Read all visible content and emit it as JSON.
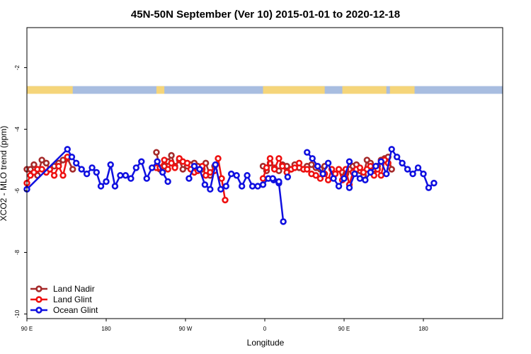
{
  "chart_data": {
    "type": "line",
    "title": "45N-50N September (Ver 10)   2015-01-01 to 2020-12-18",
    "xlabel": "Longitude",
    "ylabel": "XCO2 - MLO trend (ppm)",
    "xlim": [
      0,
      540
    ],
    "ylim": [
      -10.15,
      -0.7
    ],
    "x_ticks": [
      {
        "value": 0,
        "label": "90 E"
      },
      {
        "value": 90,
        "label": "180"
      },
      {
        "value": 180,
        "label": "90 W"
      },
      {
        "value": 270,
        "label": "0"
      },
      {
        "value": 360,
        "label": "90 E"
      },
      {
        "value": 450,
        "label": "180"
      }
    ],
    "y_ticks": [
      {
        "value": -2,
        "label": "-2"
      },
      {
        "value": -4,
        "label": "-4"
      },
      {
        "value": -6,
        "label": "-6"
      },
      {
        "value": -8,
        "label": "-8"
      },
      {
        "value": -10,
        "label": "-10"
      }
    ],
    "land_mask_band": {
      "y_top": -2.6,
      "y_bottom": -2.85,
      "land_color": "#f5d57a",
      "ocean_color": "#a8bde0",
      "land_ranges": [
        [
          0,
          52
        ],
        [
          147,
          156
        ],
        [
          268,
          338
        ],
        [
          358,
          408
        ],
        [
          412,
          440
        ]
      ]
    },
    "legend_position": "bottom-left",
    "series": [
      {
        "name": "Land Nadir",
        "color": "#a52a2a",
        "segments": [
          [
            [
              0,
              -5.3
            ],
            [
              4,
              -5.3
            ],
            [
              8,
              -5.15
            ],
            [
              12,
              -5.5
            ],
            [
              17,
              -5.0
            ],
            [
              22,
              -5.1
            ],
            [
              26,
              -5.3
            ],
            [
              31,
              -5.2
            ],
            [
              36,
              -5.1
            ],
            [
              41,
              -5.0
            ],
            [
              46,
              -4.95
            ],
            [
              52,
              -5.3
            ]
          ],
          [
            [
              147,
              -4.75
            ],
            [
              151,
              -5.3
            ],
            [
              156,
              -5.2
            ],
            [
              160,
              -5.05
            ],
            [
              164,
              -4.85
            ],
            [
              168,
              -5.2
            ],
            [
              173,
              -5.0
            ],
            [
              177,
              -5.3
            ],
            [
              182,
              -5.2
            ],
            [
              186,
              -5.15
            ],
            [
              190,
              -5.1
            ],
            [
              194,
              -5.2
            ],
            [
              199,
              -5.3
            ],
            [
              203,
              -5.1
            ],
            [
              208,
              -5.5
            ],
            [
              213,
              -5.2
            ]
          ],
          [
            [
              268,
              -5.2
            ],
            [
              272,
              -5.35
            ],
            [
              276,
              -5.1
            ],
            [
              281,
              -5.25
            ],
            [
              286,
              -5.35
            ],
            [
              290,
              -5.15
            ],
            [
              295,
              -5.2
            ],
            [
              300,
              -5.3
            ],
            [
              304,
              -5.15
            ],
            [
              309,
              -5.25
            ],
            [
              314,
              -5.3
            ],
            [
              318,
              -5.2
            ],
            [
              323,
              -5.15
            ],
            [
              328,
              -5.25
            ],
            [
              333,
              -5.3
            ],
            [
              338,
              -5.2
            ]
          ],
          [
            [
              358,
              -5.4
            ],
            [
              362,
              -5.45
            ],
            [
              366,
              -5.3
            ],
            [
              370,
              -5.2
            ],
            [
              374,
              -5.15
            ],
            [
              378,
              -5.35
            ],
            [
              382,
              -5.5
            ],
            [
              386,
              -5.0
            ],
            [
              390,
              -5.1
            ],
            [
              394,
              -5.3
            ],
            [
              398,
              -5.2
            ],
            [
              402,
              -5.0
            ],
            [
              406,
              -4.95
            ],
            [
              410,
              -4.9
            ],
            [
              414,
              -5.3
            ]
          ]
        ]
      },
      {
        "name": "Land Glint",
        "color": "#ee1111",
        "segments": [
          [
            [
              0,
              -5.75
            ],
            [
              4,
              -5.5
            ],
            [
              8,
              -5.4
            ],
            [
              12,
              -5.3
            ],
            [
              17,
              -5.3
            ],
            [
              22,
              -5.4
            ],
            [
              26,
              -5.3
            ],
            [
              31,
              -5.5
            ],
            [
              36,
              -5.2
            ],
            [
              41,
              -5.5
            ],
            [
              46,
              -4.9
            ]
          ],
          [
            [
              147,
              -5.25
            ],
            [
              151,
              -5.25
            ],
            [
              156,
              -5.0
            ],
            [
              160,
              -5.3
            ],
            [
              164,
              -5.1
            ],
            [
              168,
              -5.25
            ],
            [
              173,
              -4.95
            ],
            [
              177,
              -5.05
            ],
            [
              182,
              -5.1
            ],
            [
              186,
              -5.3
            ],
            [
              190,
              -5.4
            ],
            [
              194,
              -5.35
            ],
            [
              199,
              -5.2
            ],
            [
              203,
              -5.5
            ],
            [
              208,
              -5.4
            ],
            [
              213,
              -5.35
            ],
            [
              217,
              -4.95
            ],
            [
              221,
              -5.6
            ],
            [
              225,
              -6.3
            ]
          ],
          [
            [
              268,
              -5.6
            ],
            [
              272,
              -5.25
            ],
            [
              276,
              -4.95
            ],
            [
              281,
              -5.3
            ],
            [
              286,
              -4.95
            ],
            [
              290,
              -5.2
            ],
            [
              295,
              -5.4
            ],
            [
              300,
              -5.3
            ],
            [
              304,
              -5.25
            ],
            [
              309,
              -5.1
            ],
            [
              314,
              -5.3
            ],
            [
              318,
              -5.3
            ],
            [
              323,
              -5.45
            ],
            [
              328,
              -5.5
            ],
            [
              333,
              -5.6
            ],
            [
              338,
              -5.45
            ],
            [
              342,
              -5.65
            ],
            [
              346,
              -5.3
            ],
            [
              350,
              -5.45
            ],
            [
              354,
              -5.3
            ],
            [
              358,
              -5.65
            ],
            [
              362,
              -5.3
            ],
            [
              366,
              -5.8
            ],
            [
              370,
              -5.4
            ],
            [
              374,
              -5.3
            ],
            [
              378,
              -5.25
            ],
            [
              382,
              -5.4
            ],
            [
              386,
              -5.3
            ],
            [
              390,
              -5.2
            ],
            [
              394,
              -5.5
            ],
            [
              398,
              -5.3
            ],
            [
              402,
              -5.5
            ],
            [
              406,
              -5.0
            ],
            [
              410,
              -5.1
            ]
          ]
        ]
      },
      {
        "name": "Ocean Glint",
        "color": "#1010e0",
        "segments": [
          [
            [
              0,
              -5.95
            ],
            [
              46,
              -4.65
            ],
            [
              51,
              -4.9
            ],
            [
              56,
              -5.1
            ],
            [
              62,
              -5.3
            ],
            [
              68,
              -5.45
            ],
            [
              74,
              -5.25
            ],
            [
              79,
              -5.4
            ],
            [
              84,
              -5.85
            ],
            [
              90,
              -5.7
            ],
            [
              95,
              -5.15
            ],
            [
              100,
              -5.85
            ],
            [
              106,
              -5.5
            ],
            [
              112,
              -5.5
            ],
            [
              118,
              -5.6
            ],
            [
              124,
              -5.25
            ],
            [
              130,
              -5.05
            ],
            [
              136,
              -5.6
            ],
            [
              142,
              -5.25
            ],
            [
              148,
              -5.05
            ],
            [
              154,
              -5.4
            ],
            [
              160,
              -5.7
            ]
          ],
          [
            [
              184,
              -5.6
            ],
            [
              190,
              -5.2
            ],
            [
              196,
              -5.3
            ],
            [
              202,
              -5.8
            ],
            [
              208,
              -5.95
            ],
            [
              214,
              -5.15
            ],
            [
              220,
              -5.95
            ],
            [
              226,
              -5.85
            ],
            [
              232,
              -5.45
            ],
            [
              238,
              -5.5
            ],
            [
              244,
              -5.85
            ],
            [
              250,
              -5.5
            ],
            [
              256,
              -5.85
            ],
            [
              262,
              -5.85
            ],
            [
              268,
              -5.8
            ],
            [
              274,
              -5.6
            ],
            [
              280,
              -5.65
            ],
            [
              286,
              -5.75
            ],
            [
              291,
              -7.0
            ]
          ],
          [
            [
              279,
              -5.6
            ],
            [
              286,
              -5.7
            ]
          ],
          [
            [
              296,
              -5.55
            ]
          ],
          [
            [
              318,
              -4.75
            ],
            [
              324,
              -4.95
            ],
            [
              330,
              -5.2
            ],
            [
              336,
              -5.45
            ],
            [
              342,
              -5.1
            ],
            [
              348,
              -5.6
            ],
            [
              354,
              -5.85
            ],
            [
              360,
              -5.6
            ],
            [
              366,
              -5.05
            ]
          ],
          [
            [
              366,
              -5.9
            ],
            [
              372,
              -5.45
            ],
            [
              378,
              -5.6
            ],
            [
              384,
              -5.65
            ],
            [
              390,
              -5.4
            ],
            [
              396,
              -5.2
            ],
            [
              402,
              -5.05
            ],
            [
              408,
              -5.45
            ],
            [
              414,
              -4.65
            ],
            [
              420,
              -4.9
            ],
            [
              426,
              -5.1
            ],
            [
              432,
              -5.3
            ],
            [
              438,
              -5.45
            ],
            [
              444,
              -5.25
            ],
            [
              450,
              -5.45
            ],
            [
              456,
              -5.9
            ],
            [
              462,
              -5.75
            ]
          ]
        ]
      }
    ]
  }
}
